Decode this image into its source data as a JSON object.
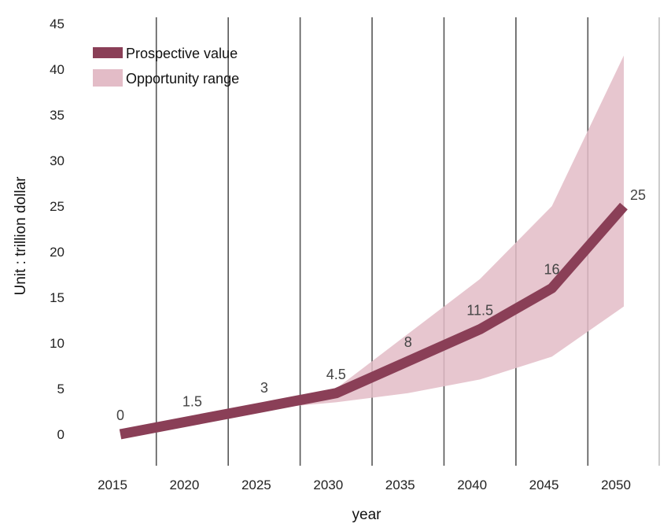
{
  "chart_data": {
    "type": "line",
    "xlabel": "year",
    "ylabel": "Unit : trillion dollar",
    "x": [
      2015,
      2020,
      2025,
      2030,
      2035,
      2040,
      2045,
      2050
    ],
    "xlim": [
      2015,
      2050
    ],
    "ylim": [
      0,
      45
    ],
    "yticks": [
      0,
      5,
      10,
      15,
      20,
      25,
      30,
      35,
      40,
      45
    ],
    "grid": "vertical",
    "legend_position": "top-left",
    "series": [
      {
        "name": "Prospective value",
        "type": "line",
        "color": "#8a3f57",
        "values": [
          0,
          1.5,
          3,
          4.5,
          8,
          11.5,
          16,
          25
        ],
        "data_labels": [
          "0",
          "1.5",
          "3",
          "4.5",
          "8",
          "11.5",
          "16",
          "25"
        ]
      },
      {
        "name": "Opportunity range",
        "type": "area",
        "color": "#e3bcc7",
        "upper": [
          0,
          1.5,
          3,
          5,
          11,
          17,
          25,
          41.5
        ],
        "lower": [
          0,
          1.2,
          2.8,
          3.5,
          4.5,
          6,
          8.5,
          14
        ]
      }
    ]
  }
}
